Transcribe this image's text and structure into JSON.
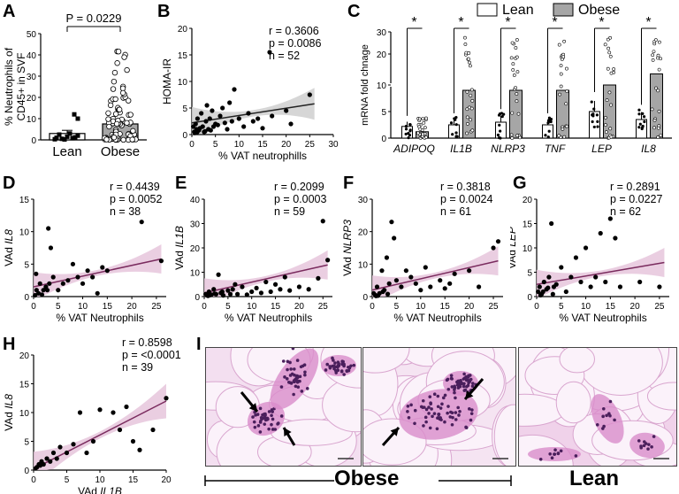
{
  "panels": {
    "A": {
      "letter": "A",
      "pvalue": "P = 0.0229",
      "ylabel_line1": "% Neutrophils of",
      "ylabel_line2": "CD45+ in SVF",
      "xlabels": [
        "Lean",
        "Obese"
      ],
      "yticks": [
        "0",
        "10",
        "20",
        "30",
        "40",
        "50"
      ]
    },
    "B": {
      "letter": "B",
      "stats": "r = 0.3606\np = 0.0086\nn = 52",
      "ylabel": "HOMA-IR",
      "xlabel": "% VAT neutrophills",
      "xticks": [
        "0",
        "5",
        "10",
        "15",
        "20",
        "25",
        "30"
      ],
      "yticks": [
        "0",
        "5",
        "10",
        "15",
        "20"
      ]
    },
    "C": {
      "letter": "C",
      "legend": [
        "Lean",
        "Obese"
      ],
      "ylabel": "mRNA fold chnage",
      "genes": [
        "ADIPOQ",
        "IL1B",
        "NLRP3",
        "TNF",
        "LEP",
        "IL8"
      ],
      "yticks": [
        "0",
        "5",
        "10",
        "20",
        "30"
      ],
      "star": "*"
    },
    "D": {
      "letter": "D",
      "stats": "r = 0.4439\np = 0.0052\nn = 38",
      "ylabel_pre": "VAd ",
      "ylabel_gene": "IL8",
      "xlabel": "% VAT Neutrophils",
      "xticks": [
        "0",
        "5",
        "10",
        "15",
        "20",
        "25"
      ],
      "yticks": [
        "0",
        "5",
        "10",
        "15"
      ]
    },
    "E": {
      "letter": "E",
      "stats": "r = 0.2099\np = 0.0003\nn = 59",
      "ylabel_pre": "VAd ",
      "ylabel_gene": "IL1B",
      "xlabel": "% VAT Neutrophils",
      "xticks": [
        "0",
        "5",
        "10",
        "15",
        "20",
        "25"
      ],
      "yticks": [
        "0",
        "10",
        "20",
        "30",
        "40"
      ]
    },
    "F": {
      "letter": "F",
      "stats": "r = 0.3818\np = 0.0024\nn = 61",
      "ylabel_pre": "VAd ",
      "ylabel_gene": "NLRP3",
      "xlabel": "% VAT Neutrophils",
      "xticks": [
        "0",
        "5",
        "10",
        "15",
        "20",
        "25"
      ],
      "yticks": [
        "0",
        "10",
        "20",
        "30"
      ]
    },
    "G": {
      "letter": "G",
      "stats": "r = 0.2891\np = 0.0227\nn = 62",
      "ylabel_pre": "VAd ",
      "ylabel_gene": "LEP",
      "xlabel": "% VAT Neutrophils",
      "xticks": [
        "0",
        "5",
        "10",
        "15",
        "20",
        "25"
      ],
      "yticks": [
        "0",
        "5",
        "10",
        "15",
        "20"
      ]
    },
    "H": {
      "letter": "H",
      "stats": "r = 0.8598\np = <0.0001\nn = 39",
      "ylabel_pre": "VAd ",
      "ylabel_gene": "IL8",
      "xlabel_pre": "VAd ",
      "xlabel_gene": "IL1B",
      "xticks": [
        "0",
        "5",
        "10",
        "15",
        "20"
      ],
      "yticks": [
        "0",
        "5",
        "10",
        "15",
        "20"
      ]
    },
    "I": {
      "letter": "I",
      "group_obese": "Obese",
      "group_lean": "Lean"
    }
  },
  "colors": {
    "lean": "#ffffff",
    "obese": "#a6a6a6",
    "fit_band_gray": "#cfcfcf",
    "fit_band_pink": "#e6c6dc",
    "fit_line": "#222222",
    "pink_line": "#7a2b5e"
  },
  "chart_data": [
    {
      "type": "bar",
      "panel": "A",
      "categories": [
        "Lean",
        "Obese"
      ],
      "values": [
        3,
        7.5
      ],
      "ylim": [
        0,
        50
      ]
    },
    {
      "type": "scatter",
      "panel": "B",
      "xlabel": "% VAT neutrophills",
      "ylabel": "HOMA-IR",
      "xlim": [
        0,
        30
      ],
      "ylim": [
        0,
        20
      ],
      "x": [
        0.3,
        0.5,
        0.8,
        1,
        1.2,
        1.5,
        1.7,
        2,
        2.3,
        2.6,
        3,
        3.2,
        3.5,
        3.8,
        4,
        4.3,
        5,
        5.5,
        6,
        6.5,
        7,
        7.5,
        8,
        8.5,
        9,
        10,
        11,
        12,
        13,
        14,
        15,
        16.5,
        17,
        20,
        21,
        25,
        0.6,
        1.1,
        2.8,
        4.6
      ],
      "y": [
        1.5,
        0.5,
        2,
        1,
        3,
        0.8,
        1.2,
        4,
        1.5,
        0.5,
        2.5,
        5.5,
        1,
        3,
        0.8,
        4.5,
        2,
        1.8,
        3.5,
        5,
        2.2,
        1,
        6,
        2.5,
        8.5,
        3,
        1.5,
        4,
        2.5,
        3,
        1.2,
        15.5,
        3.5,
        4.5,
        2,
        7.5,
        0.3,
        0.4,
        0.6,
        1.5
      ],
      "fit": {
        "x": [
          0,
          26
        ],
        "y": [
          2.2,
          5.8
        ]
      }
    },
    {
      "type": "bar",
      "panel": "C",
      "categories": [
        "ADIPOQ",
        "IL1B",
        "NLRP3",
        "TNF",
        "LEP",
        "IL8"
      ],
      "series": [
        {
          "name": "Lean",
          "values": [
            2.2,
            2.5,
            3,
            2.5,
            5,
            3.5
          ]
        },
        {
          "name": "Obese",
          "values": [
            1.2,
            9,
            9,
            9,
            10,
            11
          ]
        }
      ]
    },
    {
      "type": "scatter",
      "panel": "D",
      "xlabel": "% VAT Neutrophils",
      "ylim": [
        0,
        15
      ],
      "xlim": [
        0,
        27
      ],
      "x": [
        0.3,
        0.6,
        1,
        1.3,
        1.7,
        2,
        2.5,
        3,
        3.2,
        3.5,
        4,
        5,
        6,
        7,
        8,
        9,
        10,
        11,
        12,
        13,
        14,
        15,
        22,
        26,
        2.8,
        0.5
      ],
      "y": [
        0.2,
        1,
        0.5,
        2,
        0.3,
        1,
        1.5,
        10.5,
        2,
        7.5,
        3,
        1,
        2,
        2.5,
        5,
        3,
        2,
        4,
        3,
        0.5,
        4.5,
        4,
        11.5,
        5.5,
        1,
        3.5
      ],
      "fit": {
        "x": [
          0,
          26
        ],
        "y": [
          1.5,
          5.8
        ]
      }
    },
    {
      "type": "scatter",
      "panel": "E",
      "xlabel": "% VAT Neutrophils",
      "ylim": [
        0,
        40
      ],
      "xlim": [
        0,
        27
      ],
      "x": [
        0.3,
        0.6,
        1,
        1.5,
        2,
        2.5,
        3,
        3.5,
        4,
        5,
        6,
        7,
        8,
        9,
        10,
        11,
        12,
        13,
        14,
        15,
        16,
        17,
        18,
        20,
        22,
        24,
        25,
        26,
        0.8,
        1.2,
        2.2,
        3.8,
        5.5,
        6.5
      ],
      "y": [
        1,
        0.5,
        2,
        0.8,
        3,
        1,
        9,
        1.5,
        0.5,
        2.5,
        3,
        1,
        4,
        0.8,
        2,
        3.5,
        1.5,
        6,
        2,
        5,
        3,
        8,
        2.5,
        4,
        3,
        7.5,
        31,
        15,
        0.3,
        0.6,
        1.2,
        2,
        1,
        5
      ],
      "fit": {
        "x": [
          0,
          26
        ],
        "y": [
          1.5,
          13
        ]
      }
    },
    {
      "type": "scatter",
      "panel": "F",
      "xlabel": "% VAT Neutrophils",
      "ylim": [
        0,
        30
      ],
      "xlim": [
        0,
        27
      ],
      "x": [
        0.3,
        0.6,
        1,
        1.5,
        2,
        2.5,
        3,
        3.5,
        4,
        4.5,
        5,
        6,
        7,
        8,
        9,
        10,
        11,
        12,
        14,
        15,
        16,
        17,
        20,
        22,
        25,
        26,
        1.2,
        2.2,
        3.2,
        0.8
      ],
      "y": [
        1,
        0.5,
        3,
        1,
        8,
        2,
        12,
        4,
        23,
        18,
        5,
        3,
        8,
        6,
        4,
        2,
        9,
        3,
        5,
        2.5,
        4,
        7,
        8,
        3,
        15,
        17,
        0.3,
        1.5,
        0.8,
        0.2
      ],
      "fit": {
        "x": [
          0,
          26
        ],
        "y": [
          2,
          11
        ]
      }
    },
    {
      "type": "scatter",
      "panel": "G",
      "xlabel": "% VAT Neutrophils",
      "ylim": [
        0,
        20
      ],
      "xlim": [
        0,
        27
      ],
      "x": [
        0.3,
        0.6,
        1,
        1.5,
        2,
        2.5,
        3,
        3.5,
        4,
        5,
        6,
        7,
        8,
        9,
        10,
        11,
        12,
        13,
        14,
        15,
        16,
        17,
        21,
        25,
        0.8,
        1.3,
        2.3,
        3.3
      ],
      "y": [
        1,
        2,
        0.5,
        3,
        1.5,
        4,
        15,
        2,
        2.5,
        6,
        1,
        4,
        8,
        3,
        10,
        2,
        4,
        13,
        3,
        16,
        12,
        2,
        3,
        2,
        0.3,
        1,
        1.8,
        0.5
      ],
      "fit": {
        "x": [
          0,
          26
        ],
        "y": [
          2.5,
          7
        ]
      }
    },
    {
      "type": "scatter",
      "panel": "H",
      "xlabel": "VAd IL1B",
      "ylim": [
        0,
        20
      ],
      "xlim": [
        0,
        20
      ],
      "x": [
        0.3,
        0.5,
        0.8,
        1,
        1.2,
        1.5,
        2,
        2.5,
        3,
        3.5,
        4,
        5,
        6,
        7,
        8,
        9,
        10,
        12,
        13,
        14,
        15,
        16,
        18,
        20
      ],
      "y": [
        0.3,
        0.5,
        1,
        0.8,
        1.5,
        1,
        2,
        1.5,
        3,
        2,
        4,
        3,
        4.5,
        10,
        3,
        5,
        10.5,
        10,
        7,
        11,
        5,
        3.5,
        7,
        12.5
      ],
      "fit": {
        "x": [
          0,
          20
        ],
        "y": [
          0.2,
          12
        ]
      }
    }
  ]
}
